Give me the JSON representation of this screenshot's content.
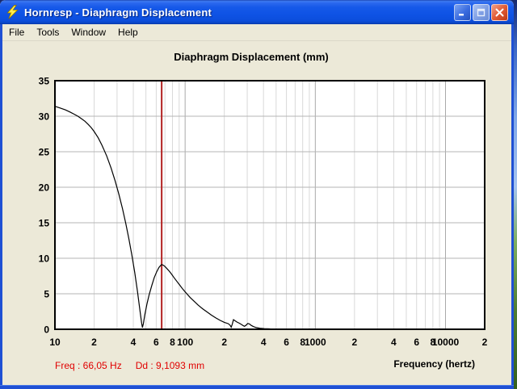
{
  "window": {
    "title": "Hornresp - Diaphragm Displacement",
    "icon": "lightning-bolt",
    "buttons": {
      "minimize": "minimize",
      "maximize": "maximize",
      "close": "close"
    }
  },
  "menu": {
    "items": [
      {
        "label": "File"
      },
      {
        "label": "Tools"
      },
      {
        "label": "Window"
      },
      {
        "label": "Help"
      }
    ]
  },
  "chart_data": {
    "type": "line",
    "title": "Diaphragm Displacement (mm)",
    "xlabel": "Frequency (hertz)",
    "ylabel": "",
    "x_scale": "log",
    "x_range": [
      10,
      20000
    ],
    "y_range": [
      0,
      35
    ],
    "grid": true,
    "y_ticks": [
      0,
      5,
      10,
      15,
      20,
      25,
      30,
      35
    ],
    "y_gridlines": [
      5,
      10,
      15,
      20,
      25,
      30
    ],
    "x_ticks": [
      {
        "value": 10,
        "label": "10"
      },
      {
        "value": 20,
        "label": "2"
      },
      {
        "value": 40,
        "label": "4"
      },
      {
        "value": 60,
        "label": "6"
      },
      {
        "value": 80,
        "label": "8"
      },
      {
        "value": 100,
        "label": "100"
      },
      {
        "value": 200,
        "label": "2"
      },
      {
        "value": 400,
        "label": "4"
      },
      {
        "value": 600,
        "label": "6"
      },
      {
        "value": 800,
        "label": "8"
      },
      {
        "value": 1000,
        "label": "1000"
      },
      {
        "value": 2000,
        "label": "2"
      },
      {
        "value": 4000,
        "label": "4"
      },
      {
        "value": 6000,
        "label": "6"
      },
      {
        "value": 8000,
        "label": "8"
      },
      {
        "value": 10000,
        "label": "10000"
      },
      {
        "value": 20000,
        "label": "2"
      }
    ],
    "x_gridlines_minor": [
      20,
      30,
      40,
      50,
      60,
      70,
      80,
      90,
      200,
      300,
      400,
      500,
      600,
      700,
      800,
      900,
      2000,
      3000,
      4000,
      5000,
      6000,
      7000,
      8000,
      9000
    ],
    "x_gridlines_major": [
      100,
      1000,
      10000
    ],
    "cursor": {
      "freq": 66.05,
      "value": 9.1093,
      "color": "#b22222"
    },
    "series": [
      {
        "name": "diaphragm-displacement",
        "color": "#000000",
        "points": [
          [
            10,
            31.4
          ],
          [
            11,
            31.15
          ],
          [
            12,
            30.9
          ],
          [
            13,
            30.6
          ],
          [
            14,
            30.3
          ],
          [
            15,
            30.0
          ],
          [
            16,
            29.65
          ],
          [
            17,
            29.3
          ],
          [
            18,
            28.85
          ],
          [
            19,
            28.4
          ],
          [
            20,
            27.85
          ],
          [
            21.5,
            26.95
          ],
          [
            23,
            25.9
          ],
          [
            25,
            24.4
          ],
          [
            27,
            22.7
          ],
          [
            29,
            20.9
          ],
          [
            31,
            19.0
          ],
          [
            33,
            17.0
          ],
          [
            35,
            14.9
          ],
          [
            37,
            12.7
          ],
          [
            39,
            10.4
          ],
          [
            41,
            8.0
          ],
          [
            43,
            5.4
          ],
          [
            45,
            2.6
          ],
          [
            46.3,
            0.9
          ],
          [
            47,
            0.25
          ],
          [
            47.8,
            0.8
          ],
          [
            49,
            2.0
          ],
          [
            51,
            3.6
          ],
          [
            53,
            4.9
          ],
          [
            55.5,
            6.2
          ],
          [
            58,
            7.3
          ],
          [
            60.5,
            8.1
          ],
          [
            63,
            8.7
          ],
          [
            65,
            9.0
          ],
          [
            66.05,
            9.11
          ],
          [
            67.5,
            9.05
          ],
          [
            69.5,
            8.9
          ],
          [
            72,
            8.6
          ],
          [
            75,
            8.25
          ],
          [
            78,
            7.85
          ],
          [
            82,
            7.3
          ],
          [
            86,
            6.8
          ],
          [
            91,
            6.2
          ],
          [
            96,
            5.65
          ],
          [
            102,
            5.1
          ],
          [
            109,
            4.5
          ],
          [
            117,
            3.95
          ],
          [
            126,
            3.4
          ],
          [
            136,
            2.9
          ],
          [
            147,
            2.45
          ],
          [
            159,
            2.0
          ],
          [
            172,
            1.6
          ],
          [
            186,
            1.25
          ],
          [
            200,
            0.98
          ],
          [
            215,
            0.78
          ],
          [
            222,
            0.55
          ],
          [
            226,
            0.3
          ],
          [
            230,
            0.7
          ],
          [
            235,
            1.35
          ],
          [
            241,
            1.22
          ],
          [
            250,
            1.02
          ],
          [
            261,
            0.85
          ],
          [
            272,
            0.66
          ],
          [
            280,
            0.5
          ],
          [
            286,
            0.42
          ],
          [
            293,
            0.56
          ],
          [
            303,
            0.82
          ],
          [
            312,
            0.75
          ],
          [
            322,
            0.55
          ],
          [
            335,
            0.38
          ],
          [
            352,
            0.24
          ],
          [
            375,
            0.15
          ],
          [
            405,
            0.09
          ],
          [
            450,
            0.06
          ],
          [
            520,
            0.04
          ],
          [
            600,
            0.03
          ],
          [
            700,
            0.025
          ],
          [
            800,
            0.02
          ],
          [
            860,
            0.02
          ]
        ]
      }
    ],
    "colors": {
      "plot_bg": "#ffffff",
      "plot_border": "#000000",
      "grid_h": "#b5b5b5",
      "grid_v_minor": "#d9d9d9",
      "grid_v_major": "#a8a8a8"
    }
  },
  "status": {
    "freq_text": "Freq : 66,05 Hz",
    "dd_text": "Dd : 9,1093 mm"
  },
  "colors": {
    "window_bg": "#ECE9D8",
    "titlebar_blue": "#0e52e4",
    "border_blue": "#1f50d4",
    "status_red": "#e00000",
    "cursor_red": "#b22222"
  }
}
